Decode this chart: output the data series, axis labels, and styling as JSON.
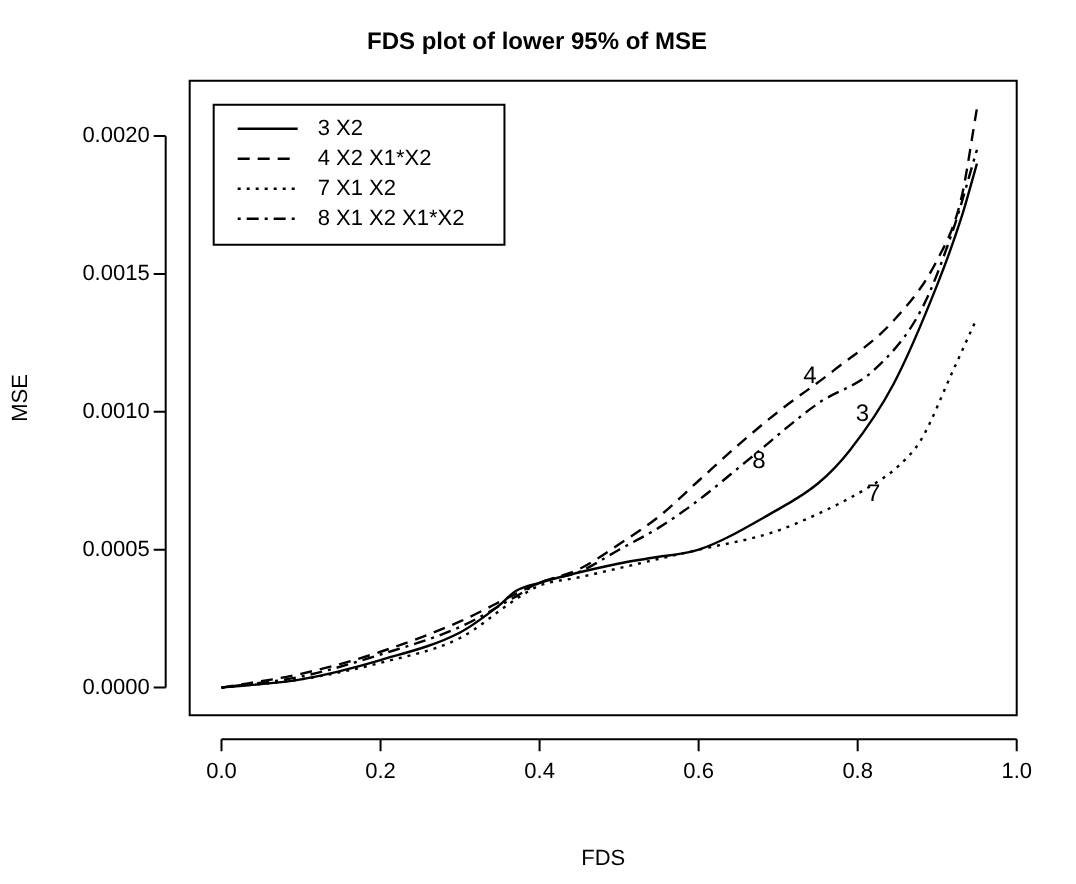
{
  "chart_data": {
    "type": "line",
    "title": "FDS plot of lower 95% of MSE",
    "xlabel": "FDS",
    "ylabel": "MSE",
    "xlim": [
      -0.04,
      1.0
    ],
    "xticks": [
      {
        "value": 0,
        "label": "0.0"
      },
      {
        "value": 0.2,
        "label": "0.2"
      },
      {
        "value": 0.4,
        "label": "0.4"
      },
      {
        "value": 0.6,
        "label": "0.6"
      },
      {
        "value": 0.8,
        "label": "0.8"
      },
      {
        "value": 1,
        "label": "1.0"
      }
    ],
    "ylim": [
      -0.0001,
      0.0022
    ],
    "yticks": [
      {
        "value": 0,
        "label": "0.0000"
      },
      {
        "value": 0.0005,
        "label": "0.0005"
      },
      {
        "value": 0.001,
        "label": "0.0010"
      },
      {
        "value": 0.0015,
        "label": "0.0015"
      },
      {
        "value": 0.002,
        "label": "0.0020"
      }
    ],
    "grid": false,
    "legend": "top left",
    "marker": "none",
    "series": [
      {
        "name": "3 X2",
        "color": "#000000",
        "line_style": "solid",
        "x": [
          0,
          0.1,
          0.2,
          0.3,
          0.35,
          0.37,
          0.4,
          0.5,
          0.54,
          0.6,
          0.69,
          0.75,
          0.79,
          0.845,
          0.9,
          0.93,
          0.95
        ],
        "values": [
          0,
          3e-05,
          0.0001,
          0.0002,
          0.0003,
          0.00035,
          0.00038,
          0.00045,
          0.00047,
          0.0005,
          0.00063,
          0.00074,
          0.00086,
          0.0011,
          0.00146,
          0.0017,
          0.0019
        ]
      },
      {
        "name": "4 X2 X1*X2",
        "color": "#000000",
        "line_style": "dashed",
        "x": [
          0,
          0.1,
          0.2,
          0.3,
          0.37,
          0.4,
          0.45,
          0.5,
          0.55,
          0.6,
          0.65,
          0.7,
          0.77,
          0.845,
          0.9,
          0.93,
          0.95
        ],
        "values": [
          0,
          5e-05,
          0.00013,
          0.00024,
          0.00034,
          0.00038,
          0.00043,
          0.00052,
          0.00062,
          0.00075,
          0.00088,
          0.001,
          0.00115,
          0.00133,
          0.00155,
          0.00177,
          0.0021
        ]
      },
      {
        "name": "7 X1 X2",
        "color": "#000000",
        "line_style": "dotted",
        "x": [
          0,
          0.1,
          0.2,
          0.3,
          0.37,
          0.4,
          0.45,
          0.54,
          0.6,
          0.69,
          0.75,
          0.81,
          0.85,
          0.88,
          0.92,
          0.95
        ],
        "values": [
          0,
          3e-05,
          9e-05,
          0.00018,
          0.00032,
          0.00037,
          0.0004,
          0.00046,
          0.0005,
          0.00056,
          0.00063,
          0.00072,
          0.0008,
          0.0009,
          0.00115,
          0.00134
        ]
      },
      {
        "name": "8 X1 X2 X1*X2",
        "color": "#000000",
        "line_style": "dashdot",
        "x": [
          0,
          0.1,
          0.2,
          0.3,
          0.37,
          0.4,
          0.45,
          0.5,
          0.55,
          0.6,
          0.66,
          0.75,
          0.82,
          0.88,
          0.92,
          0.95
        ],
        "values": [
          0,
          4e-05,
          0.00012,
          0.00022,
          0.00033,
          0.00038,
          0.00042,
          0.0005,
          0.00058,
          0.00068,
          0.00082,
          0.00103,
          0.00115,
          0.00137,
          0.00166,
          0.00195
        ]
      }
    ],
    "annotations": [
      {
        "text": "4",
        "x": 0.74,
        "y": 0.00113
      },
      {
        "text": "3",
        "x": 0.806,
        "y": 0.00099
      },
      {
        "text": "8",
        "x": 0.676,
        "y": 0.00082
      },
      {
        "text": "7",
        "x": 0.82,
        "y": 0.0007
      }
    ]
  }
}
